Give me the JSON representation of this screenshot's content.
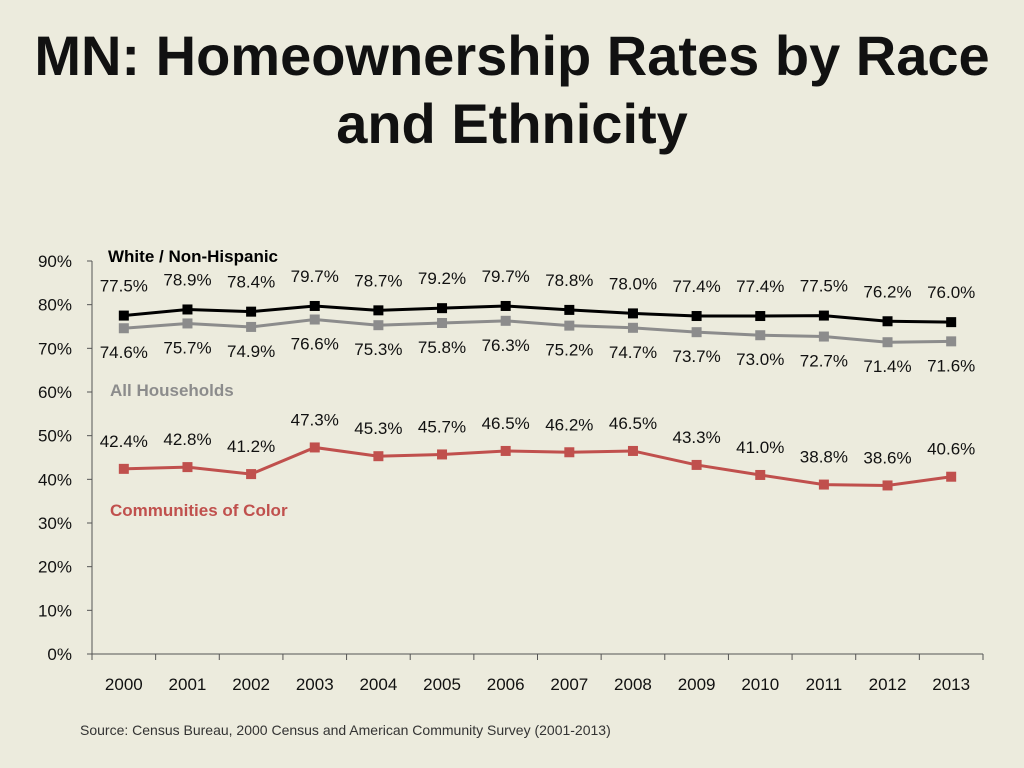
{
  "title_lines": [
    "MN: Homeownership Rates by Race",
    "and Ethnicity"
  ],
  "source": "Source:  Census Bureau, 2000 Census and American Community Survey (2001-2013)",
  "colors": {
    "background": "#ecebdd",
    "white": "#000000",
    "all": "#8c8c8c",
    "color": "#c0504d"
  },
  "chart_data": {
    "type": "line",
    "x": [
      "2000",
      "2001",
      "2002",
      "2003",
      "2004",
      "2005",
      "2006",
      "2007",
      "2008",
      "2009",
      "2010",
      "2011",
      "2012",
      "2013"
    ],
    "ylim": [
      0,
      90
    ],
    "y_ticks": [
      "0%",
      "10%",
      "20%",
      "30%",
      "40%",
      "50%",
      "60%",
      "70%",
      "80%",
      "90%"
    ],
    "grid": false,
    "series": [
      {
        "name": "White / Non-Hispanic",
        "color": "#000000",
        "values": [
          77.5,
          78.9,
          78.4,
          79.7,
          78.7,
          79.2,
          79.7,
          78.8,
          78.0,
          77.4,
          77.4,
          77.5,
          76.2,
          76.0
        ],
        "labels": [
          "77.5%",
          "78.9%",
          "78.4%",
          "79.7%",
          "78.7%",
          "79.2%",
          "79.7%",
          "78.8%",
          "78.0%",
          "77.4%",
          "77.4%",
          "77.5%",
          "76.2%",
          "76.0%"
        ]
      },
      {
        "name": "All Households",
        "color": "#8c8c8c",
        "values": [
          74.6,
          75.7,
          74.9,
          76.6,
          75.3,
          75.8,
          76.3,
          75.2,
          74.7,
          73.7,
          73.0,
          72.7,
          71.4,
          71.6
        ],
        "labels": [
          "74.6%",
          "75.7%",
          "74.9%",
          "76.6%",
          "75.3%",
          "75.8%",
          "76.3%",
          "75.2%",
          "74.7%",
          "73.7%",
          "73.0%",
          "72.7%",
          "71.4%",
          "71.6%"
        ]
      },
      {
        "name": "Communities of Color",
        "color": "#c0504d",
        "values": [
          42.4,
          42.8,
          41.2,
          47.3,
          45.3,
          45.7,
          46.5,
          46.2,
          46.5,
          43.3,
          41.0,
          38.8,
          38.6,
          40.6
        ],
        "labels": [
          "42.4%",
          "42.8%",
          "41.2%",
          "47.3%",
          "45.3%",
          "45.7%",
          "46.5%",
          "46.2%",
          "46.5%",
          "43.3%",
          "41.0%",
          "38.8%",
          "38.6%",
          "40.6%"
        ]
      }
    ]
  }
}
